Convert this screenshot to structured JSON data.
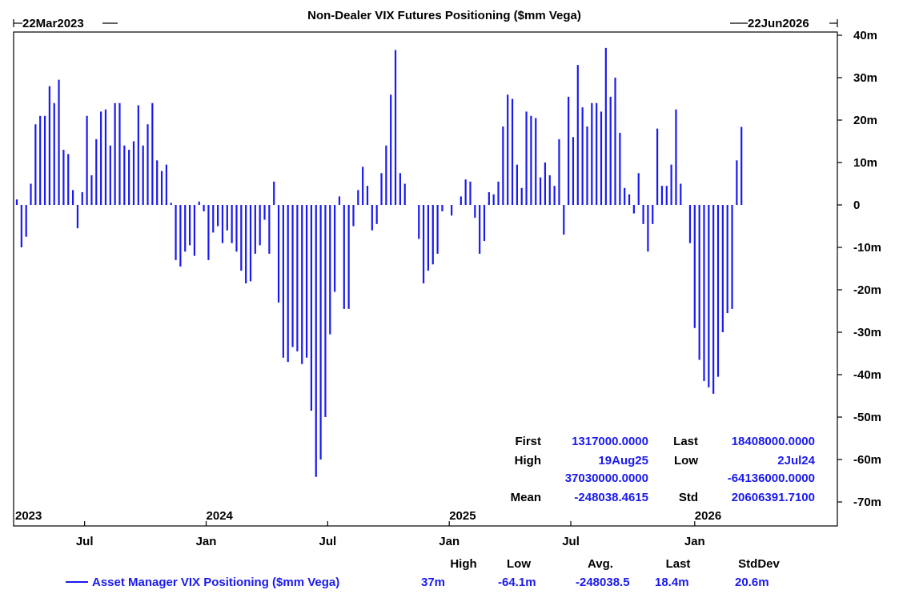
{
  "colors": {
    "series": "#1a1aee",
    "stats": "#1a1aee",
    "text": "#000000",
    "background": "#ffffff"
  },
  "header": {
    "start_date": "22Mar2023",
    "end_date": "22Jun2026"
  },
  "stats_box": {
    "first_label": "First",
    "first_value": "1317000.0000",
    "last_label": "Last",
    "last_value": "18408000.0000",
    "high_label": "High",
    "high_date": "19Aug25",
    "high_value": "37030000.0000",
    "low_label": "Low",
    "low_date": "2Jul24",
    "low_value": "-64136000.0000",
    "mean_label": "Mean",
    "mean_value": "-248038.4615",
    "std_label": "Std",
    "std_value": "20606391.7100"
  },
  "legend": {
    "headers": {
      "high": "High",
      "low": "Low",
      "avg": "Avg.",
      "last": "Last",
      "stddev": "StdDev"
    },
    "series_name": "Asset Manager VIX Positioning ($mm Vega)",
    "values": {
      "high": "37m",
      "low": "-64.1m",
      "avg": "-248038.5",
      "last": "18.4m",
      "stddev": "20.6m"
    }
  },
  "chart_data": {
    "type": "bar",
    "title": "Non-Dealer VIX Futures Positioning ($mm Vega)",
    "xlabel": "",
    "ylabel": "",
    "ylim": [
      -73,
      41
    ],
    "y_ticks": [
      {
        "value": 40,
        "label": "40m"
      },
      {
        "value": 30,
        "label": "30m"
      },
      {
        "value": 20,
        "label": "20m"
      },
      {
        "value": 10,
        "label": "10m"
      },
      {
        "value": 0,
        "label": "0"
      },
      {
        "value": -10,
        "label": "-10m"
      },
      {
        "value": -20,
        "label": "-20m"
      },
      {
        "value": -30,
        "label": "-30m"
      },
      {
        "value": -40,
        "label": "-40m"
      },
      {
        "value": -50,
        "label": "-50m"
      },
      {
        "value": -60,
        "label": "-60m"
      },
      {
        "value": -70,
        "label": "-70m"
      }
    ],
    "x_month_ticks": [
      {
        "week": 14.5,
        "label": "Jul"
      },
      {
        "week": 40.5,
        "label": "Jan"
      },
      {
        "week": 66.5,
        "label": "Jul"
      },
      {
        "week": 92.5,
        "label": "Jan"
      },
      {
        "week": 118.5,
        "label": "Jul"
      },
      {
        "week": 145,
        "label": "Jan"
      }
    ],
    "x_year_labels": [
      {
        "week": 0,
        "label": "2023"
      },
      {
        "week": 40.5,
        "label": "2024"
      },
      {
        "week": 92.5,
        "label": "2025"
      },
      {
        "week": 145,
        "label": "2026"
      }
    ],
    "x_start_week": 0,
    "x_end_week": 169,
    "series": [
      {
        "name": "Asset Manager VIX Positioning ($mm Vega)",
        "week_index": [
          0,
          1,
          2,
          3,
          4,
          5,
          6,
          7,
          8,
          9,
          10,
          11,
          12,
          13,
          14,
          15,
          16,
          17,
          18,
          19,
          20,
          21,
          22,
          23,
          24,
          25,
          26,
          27,
          28,
          29,
          30,
          31,
          32,
          33,
          34,
          35,
          36,
          37,
          38,
          39,
          40,
          41,
          42,
          43,
          44,
          45,
          46,
          47,
          48,
          49,
          50,
          51,
          52,
          53,
          54,
          55,
          56,
          57,
          58,
          59,
          60,
          61,
          62,
          63,
          64,
          65,
          66,
          67,
          68,
          69,
          70,
          71,
          72,
          73,
          74,
          75,
          76,
          77,
          78,
          79,
          80,
          81,
          82,
          83,
          84,
          85,
          86,
          87,
          88,
          89,
          90,
          91,
          92,
          93,
          94,
          95,
          96,
          97,
          98,
          99,
          100,
          101,
          102,
          103,
          104,
          105,
          106,
          107,
          108,
          109,
          110,
          111,
          112,
          113,
          114,
          115,
          116,
          117,
          118,
          119,
          120,
          121,
          122,
          123,
          124,
          125,
          126,
          127,
          128,
          129,
          130,
          131,
          132,
          133,
          134,
          135,
          136,
          137,
          138,
          139,
          140,
          141,
          142,
          143,
          144,
          145,
          146,
          147,
          148,
          149,
          150,
          151,
          152,
          153,
          154,
          155
        ],
        "values": [
          1.3,
          -10,
          -7.5,
          5,
          19,
          21,
          21,
          28,
          24,
          29.5,
          13,
          12,
          3.5,
          -5.5,
          3,
          21,
          7,
          15.5,
          22,
          22.5,
          14,
          24,
          24,
          14,
          13,
          15,
          23.5,
          14,
          19,
          24,
          10.5,
          8,
          9.5,
          0.5,
          -13,
          -14.5,
          -11,
          -9.5,
          -12,
          0.8,
          -1.5,
          -13,
          -6.5,
          -5,
          -9,
          -6,
          -9,
          -11,
          -15.5,
          -18.5,
          -18,
          -11.5,
          -9.5,
          -3.5,
          -11.5,
          5.5,
          -23,
          -36,
          -37,
          -33.5,
          -34.5,
          -37.5,
          -36,
          -48.5,
          -64.1,
          -60,
          -50,
          -30.5,
          -20.5,
          2,
          -24.5,
          -24.5,
          -5,
          3.5,
          9,
          4.5,
          -6,
          -4.5,
          7.5,
          14,
          26,
          36.5,
          7.5,
          5,
          0,
          0,
          -8,
          -18.5,
          -15.5,
          -14,
          -11.5,
          -1.5,
          0,
          -2.5,
          0,
          2,
          6,
          5.5,
          -3,
          -11.5,
          -8.5,
          3,
          2.5,
          5.5,
          18.5,
          26,
          25,
          9.5,
          4,
          22,
          21,
          20.5,
          6.5,
          10,
          7,
          4.5,
          15.5,
          -7,
          25.5,
          16,
          33,
          23,
          18.5,
          24,
          24,
          22,
          37,
          25.5,
          30,
          17,
          4,
          2.5,
          -2,
          7.5,
          -4.5,
          -11,
          -4.5,
          18,
          4.5,
          4.5,
          9.5,
          22.5,
          5,
          0,
          -9,
          -29,
          -36.5,
          -41.5,
          -43,
          -44.5,
          -40.5,
          -30,
          -25.5,
          -24.5,
          10.5,
          18.4
        ]
      }
    ]
  }
}
